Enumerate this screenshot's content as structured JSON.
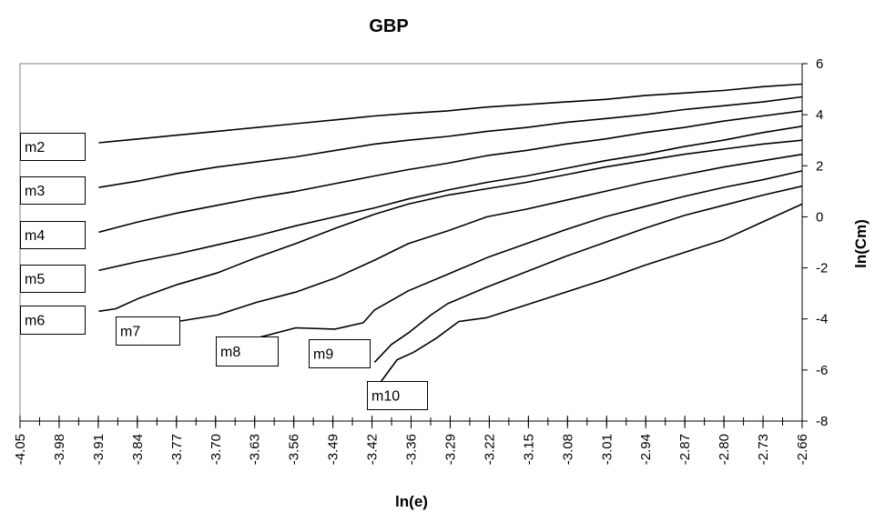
{
  "chart_data": {
    "type": "line",
    "title": "GBP",
    "xlabel": "ln(e)",
    "ylabel": "ln(Cm)",
    "xlim": [
      -4.05,
      -2.66
    ],
    "ylim": [
      -8,
      6
    ],
    "x_ticks": [
      "-4.05",
      "-3.98",
      "-3.91",
      "-3.84",
      "-3.77",
      "-3.70",
      "-3.63",
      "-3.56",
      "-3.49",
      "-3.42",
      "-3.36",
      "-3.29",
      "-3.22",
      "-3.15",
      "-3.08",
      "-3.01",
      "-2.94",
      "-2.87",
      "-2.80",
      "-2.73",
      "-2.66"
    ],
    "y_ticks": [
      "6",
      "4",
      "2",
      "0",
      "-2",
      "-4",
      "-6",
      "-8"
    ],
    "y_axis_position": "right",
    "grid": false,
    "series": [
      {
        "name": "m2",
        "x": [
          -3.91,
          -3.84,
          -3.77,
          -3.7,
          -3.63,
          -3.56,
          -3.49,
          -3.42,
          -3.36,
          -3.29,
          -3.22,
          -3.15,
          -3.08,
          -3.01,
          -2.94,
          -2.87,
          -2.8,
          -2.73,
          -2.66
        ],
        "y": [
          2.9,
          3.05,
          3.2,
          3.35,
          3.5,
          3.65,
          3.8,
          3.95,
          4.05,
          4.15,
          4.3,
          4.4,
          4.5,
          4.6,
          4.75,
          4.85,
          4.95,
          5.1,
          5.2
        ]
      },
      {
        "name": "m3",
        "x": [
          -3.91,
          -3.84,
          -3.77,
          -3.7,
          -3.63,
          -3.56,
          -3.49,
          -3.42,
          -3.36,
          -3.29,
          -3.22,
          -3.15,
          -3.08,
          -3.01,
          -2.94,
          -2.87,
          -2.8,
          -2.73,
          -2.66
        ],
        "y": [
          1.15,
          1.4,
          1.7,
          1.95,
          2.15,
          2.35,
          2.6,
          2.85,
          3.0,
          3.15,
          3.35,
          3.5,
          3.7,
          3.85,
          4.0,
          4.2,
          4.35,
          4.5,
          4.7
        ]
      },
      {
        "name": "m4",
        "x": [
          -3.91,
          -3.84,
          -3.77,
          -3.7,
          -3.63,
          -3.56,
          -3.49,
          -3.42,
          -3.36,
          -3.29,
          -3.22,
          -3.15,
          -3.08,
          -3.01,
          -2.94,
          -2.87,
          -2.8,
          -2.73,
          -2.66
        ],
        "y": [
          -0.6,
          -0.2,
          0.15,
          0.45,
          0.75,
          1.0,
          1.3,
          1.6,
          1.85,
          2.1,
          2.4,
          2.6,
          2.85,
          3.05,
          3.3,
          3.5,
          3.75,
          3.95,
          4.15
        ]
      },
      {
        "name": "m5",
        "x": [
          -3.91,
          -3.84,
          -3.77,
          -3.7,
          -3.63,
          -3.56,
          -3.49,
          -3.42,
          -3.36,
          -3.29,
          -3.22,
          -3.15,
          -3.08,
          -3.01,
          -2.94,
          -2.87,
          -2.8,
          -2.73,
          -2.66
        ],
        "y": [
          -2.1,
          -1.75,
          -1.45,
          -1.1,
          -0.75,
          -0.35,
          0.0,
          0.35,
          0.7,
          1.05,
          1.35,
          1.6,
          1.9,
          2.2,
          2.45,
          2.75,
          3.0,
          3.3,
          3.55
        ]
      },
      {
        "name": "m6",
        "x": [
          -3.91,
          -3.88,
          -3.84,
          -3.77,
          -3.7,
          -3.63,
          -3.56,
          -3.49,
          -3.42,
          -3.36,
          -3.29,
          -3.22,
          -3.15,
          -3.08,
          -3.01,
          -2.94,
          -2.87,
          -2.8,
          -2.73,
          -2.66
        ],
        "y": [
          -3.7,
          -3.6,
          -3.2,
          -2.65,
          -2.2,
          -1.6,
          -1.05,
          -0.45,
          0.1,
          0.5,
          0.85,
          1.1,
          1.35,
          1.65,
          1.95,
          2.2,
          2.45,
          2.65,
          2.85,
          3.0
        ]
      },
      {
        "name": "m7",
        "x": [
          -3.77,
          -3.7,
          -3.63,
          -3.56,
          -3.49,
          -3.42,
          -3.36,
          -3.29,
          -3.22,
          -3.15,
          -3.08,
          -3.01,
          -2.94,
          -2.87,
          -2.8,
          -2.73,
          -2.66
        ],
        "y": [
          -4.1,
          -3.85,
          -3.35,
          -2.95,
          -2.4,
          -1.7,
          -1.05,
          -0.55,
          0.0,
          0.3,
          0.65,
          1.0,
          1.35,
          1.65,
          1.95,
          2.2,
          2.45
        ]
      },
      {
        "name": "m8",
        "x": [
          -3.63,
          -3.56,
          -3.49,
          -3.44,
          -3.42,
          -3.36,
          -3.29,
          -3.22,
          -3.15,
          -3.08,
          -3.01,
          -2.94,
          -2.87,
          -2.8,
          -2.73,
          -2.66
        ],
        "y": [
          -4.75,
          -4.35,
          -4.4,
          -4.15,
          -3.65,
          -2.9,
          -2.25,
          -1.6,
          -1.05,
          -0.5,
          0.0,
          0.4,
          0.8,
          1.15,
          1.45,
          1.8
        ]
      },
      {
        "name": "m9",
        "x": [
          -3.42,
          -3.39,
          -3.36,
          -3.32,
          -3.29,
          -3.22,
          -3.15,
          -3.08,
          -3.01,
          -2.94,
          -2.87,
          -2.8,
          -2.73,
          -2.66
        ],
        "y": [
          -5.7,
          -5.0,
          -4.55,
          -3.85,
          -3.4,
          -2.75,
          -2.15,
          -1.55,
          -1.0,
          -0.45,
          0.05,
          0.45,
          0.85,
          1.2
        ]
      },
      {
        "name": "m10",
        "x": [
          -3.41,
          -3.38,
          -3.35,
          -3.31,
          -3.27,
          -3.22,
          -3.15,
          -3.08,
          -3.01,
          -2.94,
          -2.87,
          -2.8,
          -2.73,
          -2.66
        ],
        "y": [
          -6.5,
          -5.6,
          -5.3,
          -4.75,
          -4.1,
          -3.95,
          -3.45,
          -2.95,
          -2.45,
          -1.9,
          -1.4,
          -0.9,
          -0.2,
          0.5
        ]
      }
    ],
    "labels": [
      {
        "text": "m2"
      },
      {
        "text": "m3"
      },
      {
        "text": "m4"
      },
      {
        "text": "m5"
      },
      {
        "text": "m6"
      },
      {
        "text": "m7"
      },
      {
        "text": "m8"
      },
      {
        "text": "m9"
      },
      {
        "text": "m10"
      }
    ]
  }
}
